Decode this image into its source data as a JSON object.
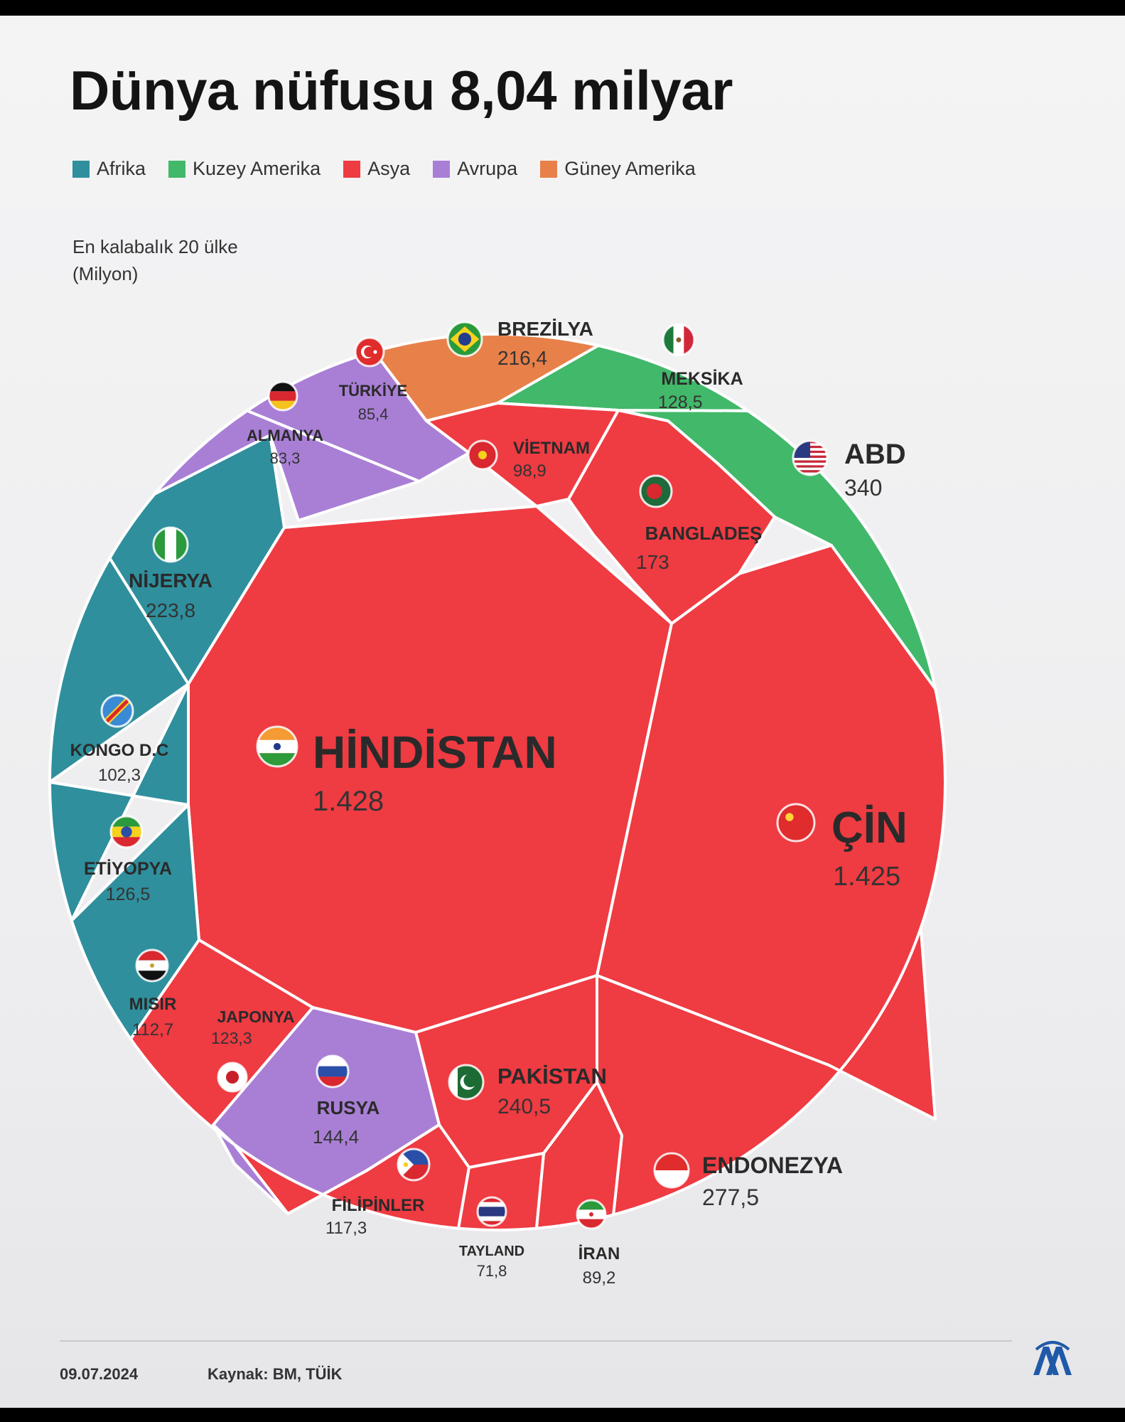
{
  "title": "Dünya nüfusu 8,04 milyar",
  "subtitle_line1": "En kalabalık 20 ülke",
  "subtitle_line2": "(Milyon)",
  "legend": [
    {
      "label": "Afrika",
      "color": "#2f8f9d"
    },
    {
      "label": "Kuzey Amerika",
      "color": "#42b86a"
    },
    {
      "label": "Asya",
      "color": "#ef3b42"
    },
    {
      "label": "Avrupa",
      "color": "#a97fd6"
    },
    {
      "label": "Güney Amerika",
      "color": "#e8804a"
    }
  ],
  "footer": {
    "date": "09.07.2024",
    "source": "Kaynak: BM, TÜİK",
    "logo": "aa-logo-icon"
  },
  "chart_data": {
    "type": "voronoi-treemap",
    "title": "Dünya nüfusu 8,04 milyar",
    "unit": "En kalabalık 20 ülke (Milyon)",
    "countries": [
      {
        "name": "HİNDİSTAN",
        "value_label": "1.428",
        "value": 1428,
        "region": "Asya",
        "flag": "india-flag-icon"
      },
      {
        "name": "ÇİN",
        "value_label": "1.425",
        "value": 1425,
        "region": "Asya",
        "flag": "china-flag-icon"
      },
      {
        "name": "ABD",
        "value_label": "340",
        "value": 340,
        "region": "Kuzey Amerika",
        "flag": "usa-flag-icon"
      },
      {
        "name": "ENDONEZYA",
        "value_label": "277,5",
        "value": 277.5,
        "region": "Asya",
        "flag": "indonesia-flag-icon"
      },
      {
        "name": "PAKİSTAN",
        "value_label": "240,5",
        "value": 240.5,
        "region": "Asya",
        "flag": "pakistan-flag-icon"
      },
      {
        "name": "NİJERYA",
        "value_label": "223,8",
        "value": 223.8,
        "region": "Afrika",
        "flag": "nigeria-flag-icon"
      },
      {
        "name": "BREZİLYA",
        "value_label": "216,4",
        "value": 216.4,
        "region": "Güney Amerika",
        "flag": "brazil-flag-icon"
      },
      {
        "name": "BANGLADEŞ",
        "value_label": "173",
        "value": 173,
        "region": "Asya",
        "flag": "bangladesh-flag-icon"
      },
      {
        "name": "RUSYA",
        "value_label": "144,4",
        "value": 144.4,
        "region": "Avrupa",
        "flag": "russia-flag-icon"
      },
      {
        "name": "MEKSİKA",
        "value_label": "128,5",
        "value": 128.5,
        "region": "Kuzey Amerika",
        "flag": "mexico-flag-icon"
      },
      {
        "name": "ETİYOPYA",
        "value_label": "126,5",
        "value": 126.5,
        "region": "Afrika",
        "flag": "ethiopia-flag-icon"
      },
      {
        "name": "JAPONYA",
        "value_label": "123,3",
        "value": 123.3,
        "region": "Asya",
        "flag": "japan-flag-icon"
      },
      {
        "name": "FİLİPİNLER",
        "value_label": "117,3",
        "value": 117.3,
        "region": "Asya",
        "flag": "philippines-flag-icon"
      },
      {
        "name": "MISIR",
        "value_label": "112,7",
        "value": 112.7,
        "region": "Afrika",
        "flag": "egypt-flag-icon"
      },
      {
        "name": "KONGO D.C",
        "value_label": "102,3",
        "value": 102.3,
        "region": "Afrika",
        "flag": "drc-flag-icon"
      },
      {
        "name": "VİETNAM",
        "value_label": "98,9",
        "value": 98.9,
        "region": "Asya",
        "flag": "vietnam-flag-icon"
      },
      {
        "name": "İRAN",
        "value_label": "89,2",
        "value": 89.2,
        "region": "Asya",
        "flag": "iran-flag-icon"
      },
      {
        "name": "TÜRKİYE",
        "value_label": "85,4",
        "value": 85.4,
        "region": "Avrupa",
        "flag": "turkey-flag-icon"
      },
      {
        "name": "ALMANYA",
        "value_label": "83,3",
        "value": 83.3,
        "region": "Avrupa",
        "flag": "germany-flag-icon"
      },
      {
        "name": "TAYLAND",
        "value_label": "71,8",
        "value": 71.8,
        "region": "Asya",
        "flag": "thailand-flag-icon"
      }
    ]
  }
}
